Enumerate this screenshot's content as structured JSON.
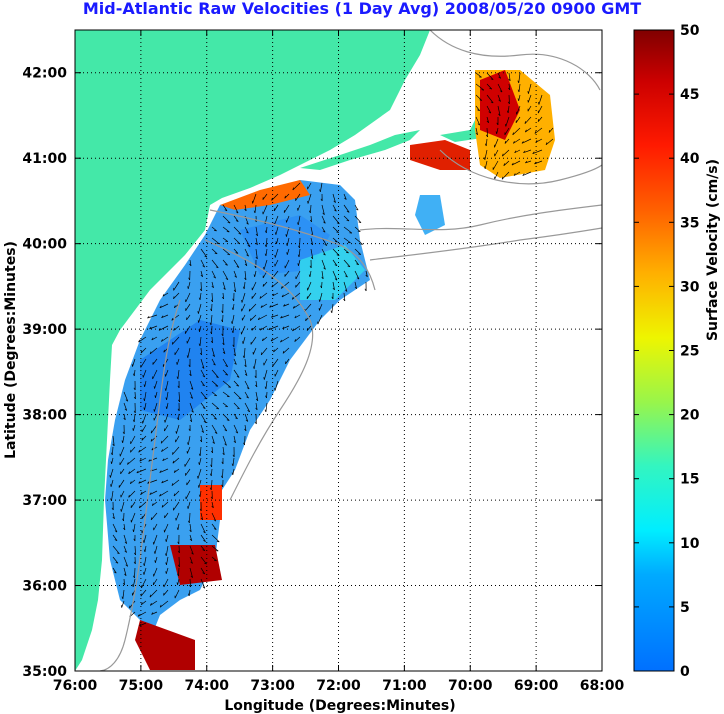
{
  "chart_data": {
    "type": "heatmap",
    "title": "Mid-Atlantic Raw Velocities (1 Day Avg) 2008/05/20 0900 GMT",
    "xlabel": "Longitude (Degrees:Minutes)",
    "ylabel": "Latitude (Degrees:Minutes)",
    "xlim": [
      -76,
      -68
    ],
    "ylim": [
      35,
      42.5
    ],
    "grid": true,
    "x_ticks": [
      "76:00",
      "75:00",
      "74:00",
      "73:00",
      "72:00",
      "71:00",
      "70:00",
      "69:00",
      "68:00"
    ],
    "y_ticks": [
      "35:00",
      "36:00",
      "37:00",
      "38:00",
      "39:00",
      "40:00",
      "41:00",
      "42:00"
    ],
    "colorbar": {
      "label": "Surface Velocity (cm/s)",
      "range": [
        0,
        50
      ],
      "ticks": [
        "0",
        "5",
        "10",
        "15",
        "20",
        "25",
        "30",
        "35",
        "40",
        "45",
        "50"
      ],
      "colormap": "jet"
    }
  },
  "colors": {
    "land": "#44e8a8",
    "title": "#1a1aff",
    "bathymetry": "#999999"
  }
}
